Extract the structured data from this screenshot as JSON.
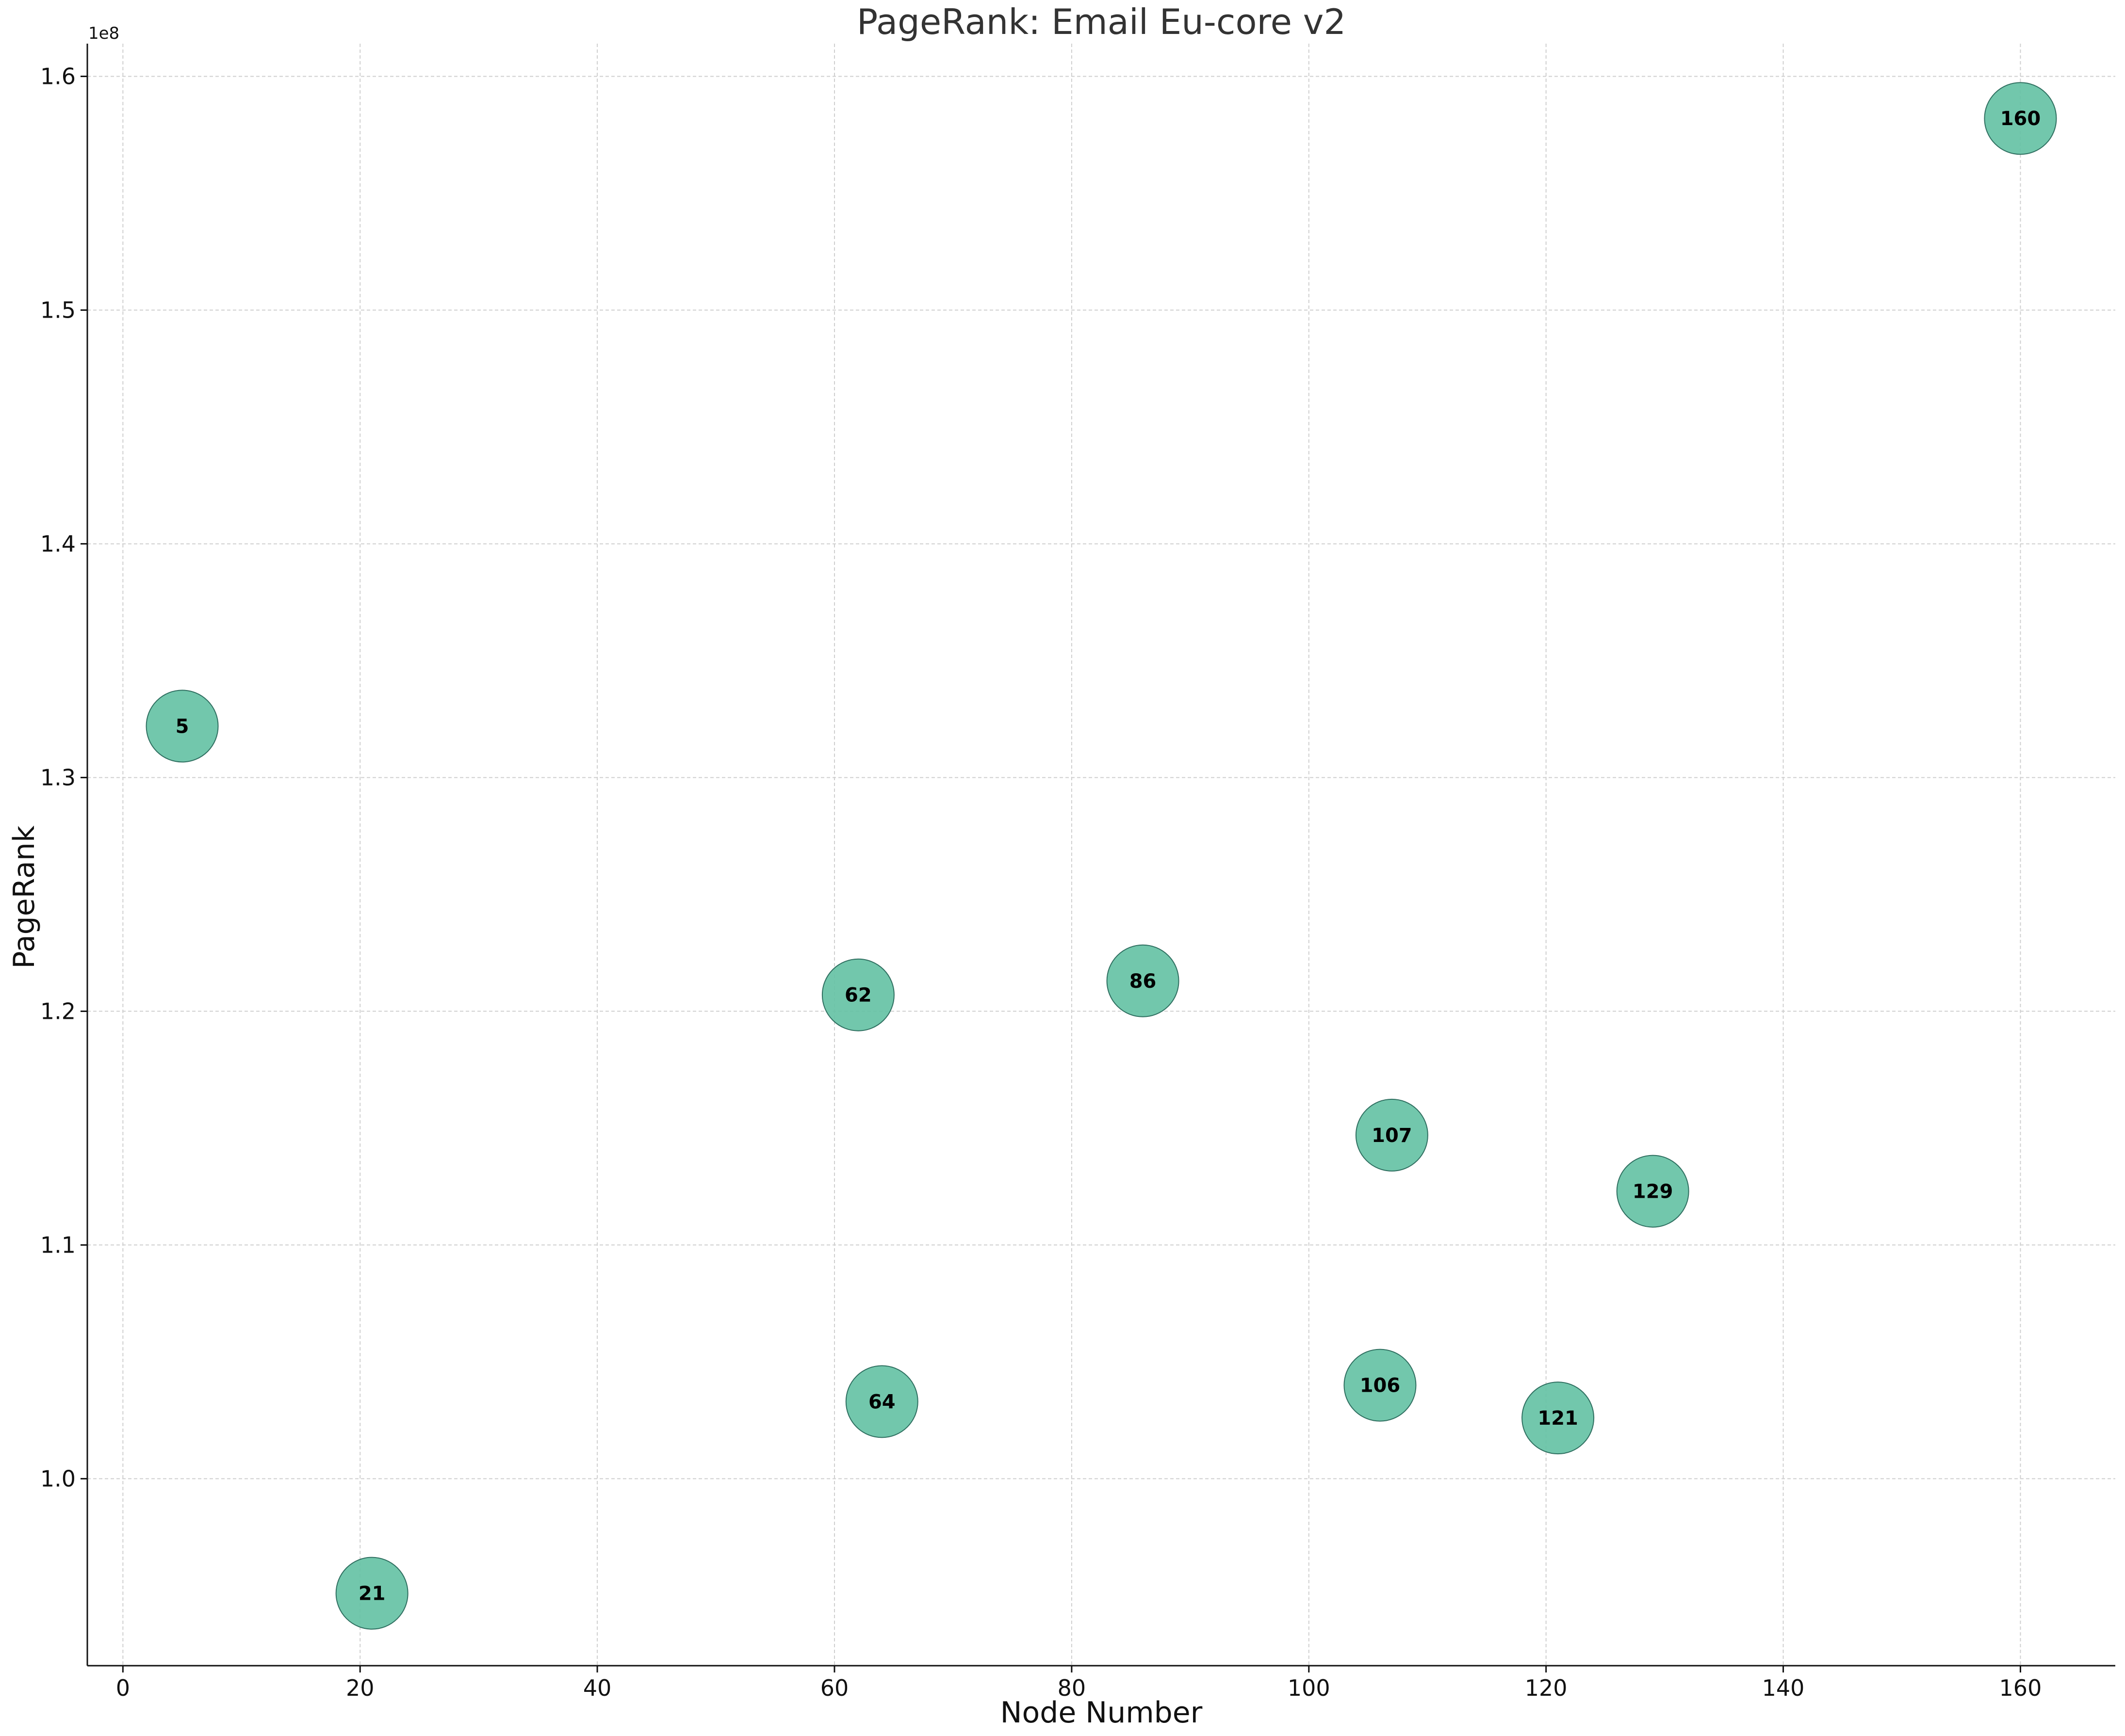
{
  "chart_data": {
    "type": "scatter",
    "title": "PageRank: Email Eu-core v2",
    "xlabel": "Node Number",
    "ylabel": "PageRank",
    "y_offset_label": "1e8",
    "xlim": [
      -3,
      168
    ],
    "ylim": [
      0.92,
      1.614
    ],
    "y_scale_factor": 100000000,
    "x_ticks": [
      0,
      20,
      40,
      60,
      80,
      100,
      120,
      140,
      160
    ],
    "y_ticks": [
      1.0,
      1.1,
      1.2,
      1.3,
      1.4,
      1.5,
      1.6
    ],
    "grid": true,
    "marker_color": "#66c2a5",
    "points": [
      {
        "x": 5,
        "y": 1.322,
        "label": "5"
      },
      {
        "x": 21,
        "y": 0.951,
        "label": "21"
      },
      {
        "x": 62,
        "y": 1.207,
        "label": "62"
      },
      {
        "x": 64,
        "y": 1.033,
        "label": "64"
      },
      {
        "x": 86,
        "y": 1.213,
        "label": "86"
      },
      {
        "x": 106,
        "y": 1.04,
        "label": "106"
      },
      {
        "x": 107,
        "y": 1.147,
        "label": "107"
      },
      {
        "x": 121,
        "y": 1.026,
        "label": "121"
      },
      {
        "x": 129,
        "y": 1.123,
        "label": "129"
      },
      {
        "x": 160,
        "y": 1.582,
        "label": "160"
      }
    ]
  }
}
